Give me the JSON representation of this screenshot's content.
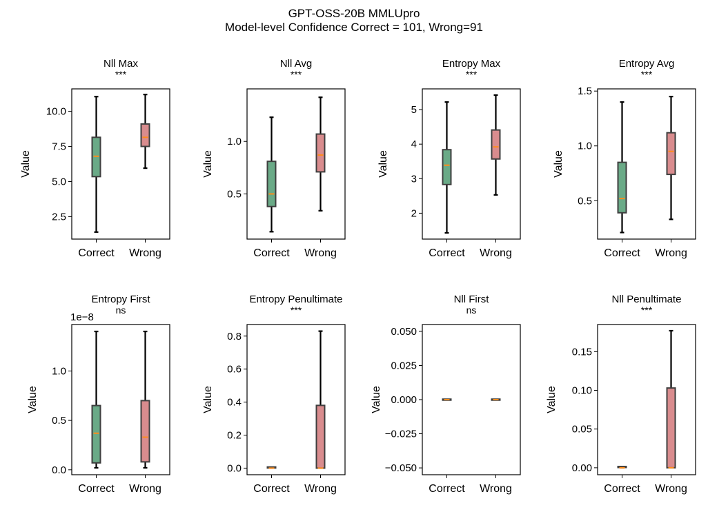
{
  "figure": {
    "title_line1": "GPT-OSS-20B MMLUpro",
    "title_line2": "Model-level Confidence Correct = 101, Wrong=91"
  },
  "colors": {
    "correct": "#6aaa87",
    "wrong": "#d98c8e",
    "median": "#ff8c1a",
    "whisker": "#000000",
    "box_edge": "#3f3f3f"
  },
  "chart_data": [
    {
      "type": "box",
      "title": "Nll Max",
      "significance": "***",
      "ylabel": "Value",
      "categories": [
        "Correct",
        "Wrong"
      ],
      "ylim": [
        0.9,
        11.6
      ],
      "yticks": [
        2.5,
        5.0,
        7.5,
        10.0
      ],
      "ytick_labels": [
        "2.5",
        "5.0",
        "7.5",
        "10.0"
      ],
      "offset_label": "",
      "boxes": [
        {
          "min": 1.4,
          "q1": 5.35,
          "median": 6.8,
          "q3": 8.15,
          "max": 11.05
        },
        {
          "min": 5.95,
          "q1": 7.5,
          "median": 8.15,
          "q3": 9.1,
          "max": 11.2
        }
      ]
    },
    {
      "type": "box",
      "title": "Nll Avg",
      "significance": "***",
      "ylabel": "Value",
      "categories": [
        "Correct",
        "Wrong"
      ],
      "ylim": [
        0.07,
        1.5
      ],
      "yticks": [
        0.5,
        1.0
      ],
      "ytick_labels": [
        "0.5",
        "1.0"
      ],
      "offset_label": "",
      "boxes": [
        {
          "min": 0.14,
          "q1": 0.38,
          "median": 0.5,
          "q3": 0.81,
          "max": 1.23
        },
        {
          "min": 0.34,
          "q1": 0.71,
          "median": 0.87,
          "q3": 1.07,
          "max": 1.42
        }
      ]
    },
    {
      "type": "box",
      "title": "Entropy Max",
      "significance": "***",
      "ylabel": "Value",
      "categories": [
        "Correct",
        "Wrong"
      ],
      "ylim": [
        1.25,
        5.6
      ],
      "yticks": [
        2,
        3,
        4,
        5
      ],
      "ytick_labels": [
        "2",
        "3",
        "4",
        "5"
      ],
      "offset_label": "",
      "boxes": [
        {
          "min": 1.43,
          "q1": 2.83,
          "median": 3.39,
          "q3": 3.84,
          "max": 5.22
        },
        {
          "min": 2.53,
          "q1": 3.57,
          "median": 3.92,
          "q3": 4.41,
          "max": 5.42
        }
      ]
    },
    {
      "type": "box",
      "title": "Entropy Avg",
      "significance": "***",
      "ylabel": "Value",
      "categories": [
        "Correct",
        "Wrong"
      ],
      "ylim": [
        0.15,
        1.52
      ],
      "yticks": [
        0.5,
        1.0,
        1.5
      ],
      "ytick_labels": [
        "0.5",
        "1.0",
        "1.5"
      ],
      "offset_label": "",
      "boxes": [
        {
          "min": 0.21,
          "q1": 0.39,
          "median": 0.52,
          "q3": 0.85,
          "max": 1.4
        },
        {
          "min": 0.33,
          "q1": 0.74,
          "median": 0.95,
          "q3": 1.12,
          "max": 1.45
        }
      ]
    },
    {
      "type": "box",
      "title": "Entropy First",
      "significance": "ns",
      "ylabel": "Value",
      "categories": [
        "Correct",
        "Wrong"
      ],
      "ylim": [
        -0.05,
        1.47
      ],
      "yticks": [
        0.0,
        0.5,
        1.0
      ],
      "ytick_labels": [
        "0.0",
        "0.5",
        "1.0"
      ],
      "offset_label": "1e−8",
      "boxes": [
        {
          "min": 0.02,
          "q1": 0.07,
          "median": 0.37,
          "q3": 0.65,
          "max": 1.4
        },
        {
          "min": 0.02,
          "q1": 0.08,
          "median": 0.33,
          "q3": 0.7,
          "max": 1.4
        }
      ]
    },
    {
      "type": "box",
      "title": "Entropy Penultimate",
      "significance": "***",
      "ylabel": "Value",
      "categories": [
        "Correct",
        "Wrong"
      ],
      "ylim": [
        -0.04,
        0.87
      ],
      "yticks": [
        0.0,
        0.2,
        0.4,
        0.6,
        0.8
      ],
      "ytick_labels": [
        "0.0",
        "0.2",
        "0.4",
        "0.6",
        "0.8"
      ],
      "offset_label": "",
      "boxes": [
        {
          "min": 0.0,
          "q1": 0.0,
          "median": 0.0,
          "q3": 0.004,
          "max": 0.004
        },
        {
          "min": 0.0,
          "q1": 0.0,
          "median": 0.0,
          "q3": 0.38,
          "max": 0.83
        }
      ]
    },
    {
      "type": "box",
      "title": "Nll First",
      "significance": "ns",
      "ylabel": "Value",
      "categories": [
        "Correct",
        "Wrong"
      ],
      "ylim": [
        -0.055,
        0.055
      ],
      "yticks": [
        -0.05,
        -0.025,
        0.0,
        0.025,
        0.05
      ],
      "ytick_labels": [
        "−0.050",
        "−0.025",
        "0.000",
        "0.025",
        "0.050"
      ],
      "offset_label": "",
      "boxes": [
        {
          "min": 0.0,
          "q1": 0.0,
          "median": 0.0,
          "q3": 0.0,
          "max": 0.0
        },
        {
          "min": 0.0,
          "q1": 0.0,
          "median": 0.0,
          "q3": 0.0,
          "max": 0.0
        }
      ]
    },
    {
      "type": "box",
      "title": "Nll Penultimate",
      "significance": "***",
      "ylabel": "Value",
      "categories": [
        "Correct",
        "Wrong"
      ],
      "ylim": [
        -0.009,
        0.185
      ],
      "yticks": [
        0.0,
        0.05,
        0.1,
        0.15
      ],
      "ytick_labels": [
        "0.00",
        "0.05",
        "0.10",
        "0.15"
      ],
      "offset_label": "",
      "boxes": [
        {
          "min": 0.0,
          "q1": 0.0,
          "median": 0.0,
          "q3": 0.001,
          "max": 0.001
        },
        {
          "min": 0.0,
          "q1": 0.0,
          "median": 0.0,
          "q3": 0.103,
          "max": 0.177
        }
      ]
    }
  ]
}
